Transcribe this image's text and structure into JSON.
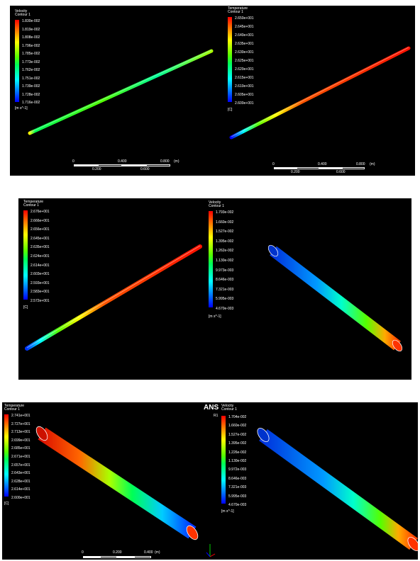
{
  "colors": {
    "background": "#000000",
    "colormap": [
      "#0000ff",
      "#0055ff",
      "#00aaff",
      "#00ffff",
      "#00ffaa",
      "#00ff55",
      "#55ff00",
      "#aaff00",
      "#ffff00",
      "#ffaa00",
      "#ff5500",
      "#ff0000"
    ]
  },
  "panels": [
    {
      "left": {
        "legend": {
          "title": "Velocity",
          "subtitle": "Contour 1",
          "labels": [
            "1.830e-002",
            "1.819e-002",
            "1.808e-002",
            "1.796e-002",
            "1.785e-002",
            "1.773e-002",
            "1.762e-002",
            "1.751e-002",
            "1.739e-002",
            "1.728e-002",
            "1.716e-002"
          ],
          "unit": "[m s^-1]"
        },
        "scale": {
          "labels_top": [
            "0",
            "0.400",
            "0.800"
          ],
          "unit": "(m)",
          "labels_bottom": [
            "0.200",
            "0.600"
          ]
        }
      },
      "right": {
        "legend": {
          "title": "Temperature",
          "subtitle": "Contour 1",
          "labels": [
            "2.650e+001",
            "2.645e+001",
            "2.640e+001",
            "2.635e+001",
            "2.630e+001",
            "2.625e+001",
            "2.620e+001",
            "2.615e+001",
            "2.610e+001",
            "2.605e+001",
            "2.600e+001"
          ],
          "unit": "[C]"
        },
        "scale": {
          "labels_top": [
            "0",
            "0.400",
            "0.800"
          ],
          "unit": "(m)",
          "labels_bottom": [
            "0.200",
            "0.600"
          ]
        }
      }
    },
    {
      "left": {
        "legend": {
          "title": "Temperature",
          "subtitle": "Contour 1",
          "labels": [
            "2.676e+001",
            "2.666e+001",
            "2.656e+001",
            "2.645e+001",
            "2.635e+001",
            "2.624e+001",
            "2.614e+001",
            "2.603e+001",
            "2.593e+001",
            "2.583e+001",
            "2.572e+001"
          ],
          "unit": "[C]"
        }
      },
      "right": {
        "legend": {
          "title": "Velocity",
          "subtitle": "Contour 1",
          "labels": [
            "1.793e-002",
            "1.660e-002",
            "1.527e-002",
            "1.395e-002",
            "1.262e-002",
            "1.130e-002",
            "9.973e-003",
            "8.646e-003",
            "7.321e-003",
            "5.995e-003",
            "4.670e-003"
          ],
          "unit": "[m s^-1]"
        }
      }
    },
    {
      "left": {
        "legend": {
          "title": "Temperature",
          "subtitle": "Contour 1",
          "labels": [
            "2.741e+001",
            "2.727e+001",
            "2.713e+001",
            "2.699e+001",
            "2.685e+001",
            "2.671e+001",
            "2.657e+001",
            "2.643e+001",
            "2.628e+001",
            "2.614e+001",
            "2.600e+001"
          ],
          "unit": "[C]"
        },
        "scale": {
          "labels_top": [
            "0",
            "0.200",
            "0.400"
          ],
          "unit": "(m)"
        }
      },
      "right": {
        "ansys": "ANS",
        "ansys_sub": "R1",
        "legend": {
          "title": "Velocity",
          "subtitle": "Contour 1",
          "labels": [
            "1.704e-002",
            "1.660e-002",
            "1.527e-002",
            "1.395e-002",
            "1.226e-002",
            "1.130e-002",
            "9.972e-003",
            "8.646e-003",
            "7.321e-003",
            "5.995e-003",
            "4.670e-003"
          ],
          "unit": "[m s^-1]"
        }
      }
    }
  ]
}
